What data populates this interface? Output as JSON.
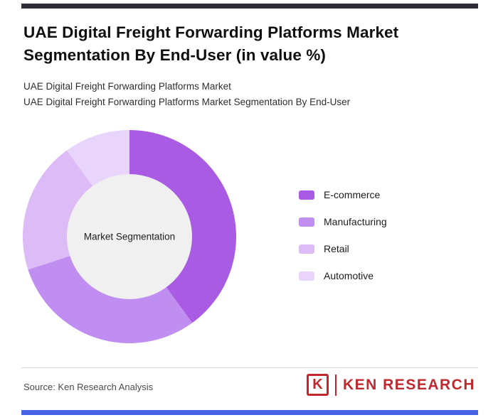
{
  "page": {
    "top_bar_color": "#2d2d38",
    "bottom_bar_color": "#4565e6",
    "background_color": "#ffffff"
  },
  "header": {
    "title": "UAE Digital Freight Forwarding Platforms Market Segmentation By End-User (in value %)",
    "subtitle_line1": "UAE Digital Freight Forwarding Platforms Market",
    "subtitle_line2": "UAE Digital Freight Forwarding Platforms Market Segmentation By End-User"
  },
  "chart_data": {
    "type": "pie",
    "donut": true,
    "title": "UAE Digital Freight Forwarding Platforms Market Segmentation By End-User (in value %)",
    "units": "value %",
    "center_label": "Market Segmentation",
    "categories": [
      "E-commerce",
      "Manufacturing",
      "Retail",
      "Automotive"
    ],
    "values": [
      40,
      30,
      20,
      10
    ],
    "colors": [
      "#a95ce3",
      "#c08df0",
      "#dcbbf6",
      "#e9d5fb"
    ],
    "hole_color": "#f0f0f0",
    "start_angle_deg": 0,
    "direction": "clockwise",
    "legend_position": "right"
  },
  "footer": {
    "source": "Source: Ken Research Analysis",
    "logo": {
      "mark": "K",
      "text": "KEN RESEARCH",
      "color": "#c0282e"
    }
  }
}
